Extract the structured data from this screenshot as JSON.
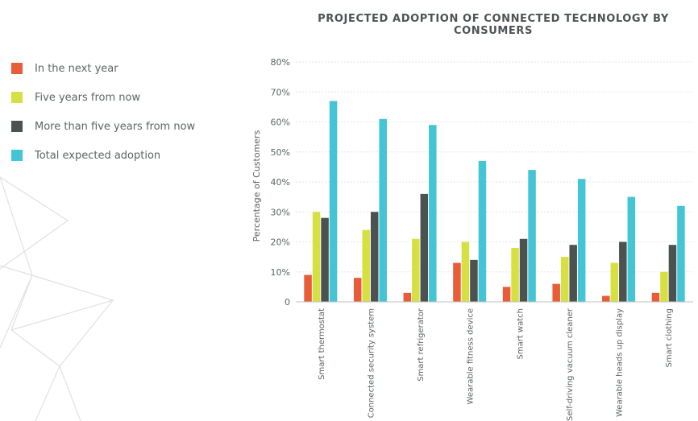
{
  "chart_data": {
    "type": "bar",
    "title": "PROJECTED ADOPTION OF CONNECTED TECHNOLOGY BY CONSUMERS",
    "xlabel": "",
    "ylabel": "Percentage of Customers",
    "ylim": [
      0,
      80
    ],
    "yticks": [
      {
        "value": 0,
        "label": "0"
      },
      {
        "value": 10,
        "label": "10%"
      },
      {
        "value": 20,
        "label": "20%"
      },
      {
        "value": 30,
        "label": "30%"
      },
      {
        "value": 40,
        "label": "40%"
      },
      {
        "value": 50,
        "label": "50%"
      },
      {
        "value": 60,
        "label": "60%"
      },
      {
        "value": 70,
        "label": "70%"
      },
      {
        "value": 80,
        "label": "80%"
      }
    ],
    "grid": true,
    "legend_position": "left",
    "categories": [
      "Smart thermostat",
      "Connected security system",
      "Smart refrigerator",
      "Wearable fitness device",
      "Smart watch",
      "Self-driving vacuum cleaner",
      "Wearable heads up display",
      "Smart clothing"
    ],
    "series": [
      {
        "name": "In the next year",
        "color": "#e85c3a",
        "values": [
          9,
          8,
          3,
          13,
          5,
          6,
          2,
          3
        ]
      },
      {
        "name": "Five years from now",
        "color": "#d7e042",
        "values": [
          30,
          24,
          21,
          20,
          18,
          15,
          13,
          10
        ]
      },
      {
        "name": "More than five years from now",
        "color": "#4b524f",
        "values": [
          28,
          30,
          36,
          14,
          21,
          19,
          20,
          19
        ]
      },
      {
        "name": "Total expected adoption",
        "color": "#44c5d5",
        "values": [
          67,
          61,
          59,
          47,
          44,
          41,
          35,
          32
        ]
      }
    ]
  }
}
